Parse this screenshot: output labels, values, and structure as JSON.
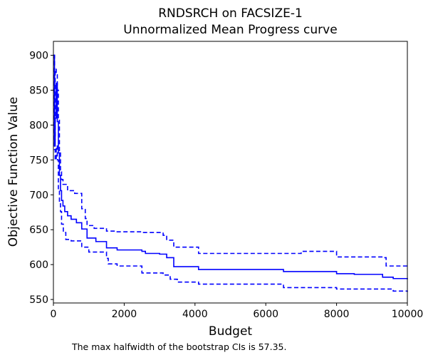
{
  "chart_data": {
    "type": "line",
    "title_line1": "RNDSRCH on FACSIZE-1",
    "title_line2": "Unnormalized Mean Progress curve",
    "xlabel": "Budget",
    "ylabel": "Objective Function Value",
    "xlim": [
      0,
      10000
    ],
    "ylim": [
      545,
      920
    ],
    "x_ticks": [
      0,
      2000,
      4000,
      6000,
      8000,
      10000
    ],
    "x_tick_labels": [
      "0",
      "2000",
      "4000",
      "6000",
      "8000",
      "10000"
    ],
    "y_ticks": [
      550,
      600,
      650,
      700,
      750,
      800,
      850,
      900
    ],
    "y_tick_labels": [
      "550",
      "600",
      "650",
      "700",
      "750",
      "800",
      "850",
      "900"
    ],
    "grid": false,
    "color": "#0000ff",
    "series": [
      {
        "style": "solid",
        "x": [
          0,
          30,
          50,
          80,
          110,
          140,
          170,
          200,
          230,
          270,
          320,
          400,
          500,
          650,
          800,
          950,
          1200,
          1500,
          1800,
          2500,
          2600,
          3000,
          3200,
          3400,
          4100,
          6500,
          8000,
          8500,
          9300,
          9600,
          10000
        ],
        "y": [
          900,
          770,
          810,
          860,
          805,
          760,
          728,
          706,
          692,
          684,
          676,
          670,
          665,
          660,
          651,
          638,
          633,
          624,
          621,
          619,
          616,
          615,
          610,
          597,
          593,
          590,
          587,
          586,
          582,
          580,
          579
        ]
      },
      {
        "style": "dashed",
        "x": [
          0,
          30,
          50,
          80,
          110,
          140,
          170,
          200,
          230,
          270,
          400,
          600,
          800,
          900,
          950,
          1150,
          1500,
          1800,
          2500,
          3100,
          3200,
          3400,
          4100,
          7000,
          8000,
          9300,
          9400,
          10000
        ],
        "y": [
          900,
          780,
          880,
          872,
          850,
          808,
          760,
          733,
          722,
          715,
          706,
          702,
          680,
          666,
          656,
          652,
          648,
          647,
          646,
          642,
          635,
          625,
          616,
          619,
          611,
          610,
          598,
          597
        ]
      },
      {
        "style": "dashed",
        "x": [
          0,
          30,
          50,
          80,
          110,
          140,
          170,
          200,
          230,
          280,
          350,
          500,
          800,
          1000,
          1500,
          1550,
          1800,
          2500,
          3100,
          3300,
          3500,
          4100,
          6500,
          8000,
          9000,
          9300,
          9600,
          10000
        ],
        "y": [
          900,
          765,
          750,
          770,
          750,
          708,
          690,
          676,
          658,
          646,
          636,
          634,
          625,
          618,
          609,
          601,
          598,
          588,
          585,
          579,
          575,
          572,
          567,
          565,
          565,
          565,
          562,
          561
        ]
      }
    ]
  },
  "caption": "The max halfwidth of the bootstrap CIs is 57.35."
}
